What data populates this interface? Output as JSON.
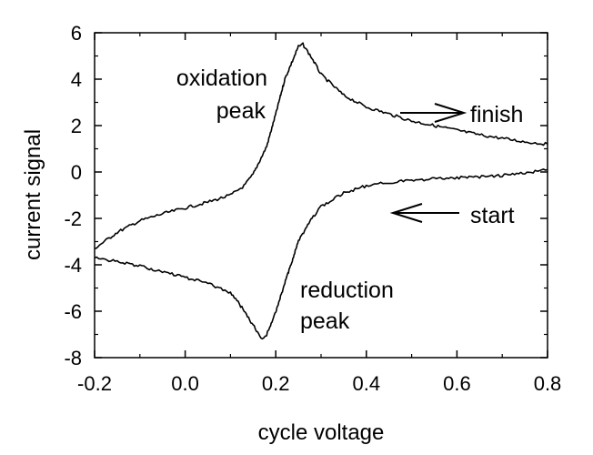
{
  "chart_data": {
    "type": "line",
    "xlabel": "cycle voltage",
    "ylabel": "current signal",
    "xlim": [
      -0.2,
      0.8
    ],
    "ylim": [
      -8,
      6
    ],
    "xticks": [
      {
        "value": -0.2,
        "label": "-0.2"
      },
      {
        "value": 0.0,
        "label": "0.0"
      },
      {
        "value": 0.2,
        "label": "0.2"
      },
      {
        "value": 0.4,
        "label": "0.4"
      },
      {
        "value": 0.6,
        "label": "0.6"
      },
      {
        "value": 0.8,
        "label": "0.8"
      }
    ],
    "yticks": [
      {
        "value": -8,
        "label": "-8"
      },
      {
        "value": -6,
        "label": "-6"
      },
      {
        "value": -4,
        "label": "-4"
      },
      {
        "value": -2,
        "label": "-2"
      },
      {
        "value": 0,
        "label": "0"
      },
      {
        "value": 2,
        "label": "2"
      },
      {
        "value": 4,
        "label": "4"
      },
      {
        "value": 6,
        "label": "6"
      }
    ],
    "grid": false,
    "series": [
      {
        "color": "#000000",
        "x": [
          0.8,
          0.75,
          0.7,
          0.65,
          0.6,
          0.55,
          0.5,
          0.45,
          0.4,
          0.35,
          0.3,
          0.28,
          0.25,
          0.22,
          0.2,
          0.18,
          0.17,
          0.15,
          0.12,
          0.1,
          0.05,
          0.0,
          -0.05,
          -0.1,
          -0.15,
          -0.2
        ],
        "y": [
          0.1,
          -0.05,
          -0.15,
          -0.2,
          -0.25,
          -0.3,
          -0.35,
          -0.45,
          -0.6,
          -0.9,
          -1.5,
          -2.0,
          -3.0,
          -4.8,
          -6.0,
          -7.0,
          -7.2,
          -6.6,
          -5.7,
          -5.2,
          -4.8,
          -4.55,
          -4.3,
          -4.05,
          -3.85,
          -3.7
        ]
      },
      {
        "color": "#000000",
        "x": [
          -0.2,
          -0.15,
          -0.1,
          -0.05,
          0.0,
          0.05,
          0.1,
          0.13,
          0.15,
          0.18,
          0.2,
          0.22,
          0.25,
          0.26,
          0.28,
          0.3,
          0.35,
          0.4,
          0.45,
          0.5,
          0.55,
          0.6,
          0.65,
          0.7,
          0.75,
          0.8
        ],
        "y": [
          -3.3,
          -2.6,
          -2.1,
          -1.8,
          -1.55,
          -1.3,
          -1.0,
          -0.6,
          -0.1,
          1.1,
          2.5,
          4.0,
          5.4,
          5.5,
          4.9,
          4.2,
          3.3,
          2.8,
          2.5,
          2.2,
          2.0,
          1.8,
          1.6,
          1.45,
          1.3,
          1.2
        ]
      }
    ],
    "annotations": {
      "oxidation_line1": "oxidation",
      "oxidation_line2": "peak",
      "reduction_line1": "reduction",
      "reduction_line2": "peak",
      "finish": "finish",
      "start": "start"
    }
  }
}
